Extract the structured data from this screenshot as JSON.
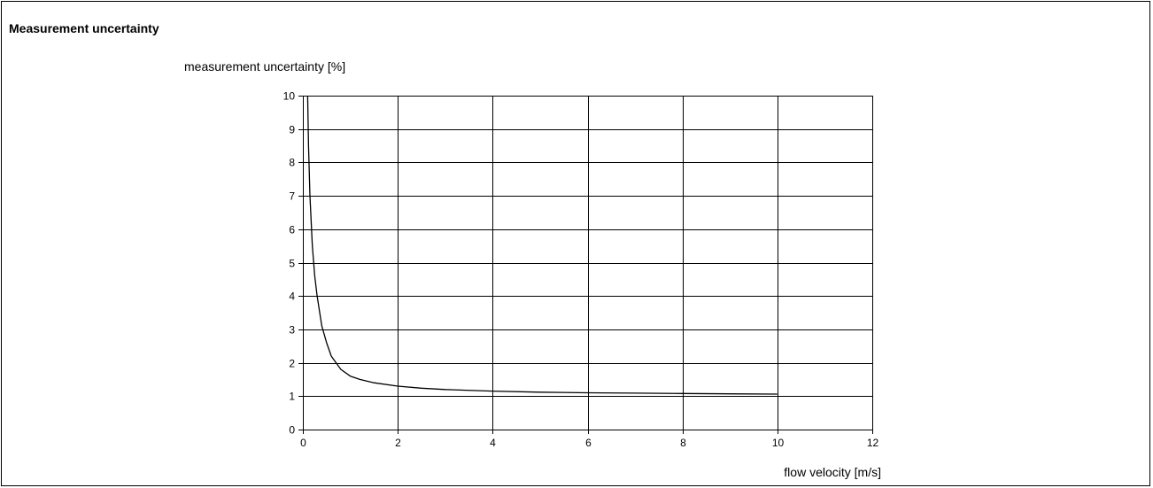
{
  "panel": {
    "title": "Measurement uncertainty"
  },
  "chart_data": {
    "type": "line",
    "title": "",
    "xlabel": "flow velocity [m/s]",
    "ylabel": "measurement uncertainty [%]",
    "xlim": [
      0,
      12
    ],
    "ylim": [
      0,
      10
    ],
    "xticks": [
      0,
      2,
      4,
      6,
      8,
      10,
      12
    ],
    "yticks": [
      0,
      1,
      2,
      3,
      4,
      5,
      6,
      7,
      8,
      9,
      10
    ],
    "grid": true,
    "legend": "none",
    "series": [
      {
        "color": "#000000",
        "x": [
          0.1,
          0.12,
          0.15,
          0.2,
          0.25,
          0.3,
          0.4,
          0.5,
          0.6,
          0.7,
          0.8,
          1.0,
          1.2,
          1.5,
          2.0,
          2.5,
          3.0,
          4.0,
          5.0,
          6.0,
          7.0,
          8.0,
          9.0,
          10.0
        ],
        "y": [
          10.0,
          8.5,
          7.0,
          5.5,
          4.6,
          4.0,
          3.1,
          2.6,
          2.2,
          2.0,
          1.8,
          1.6,
          1.5,
          1.4,
          1.3,
          1.24,
          1.2,
          1.15,
          1.12,
          1.1,
          1.09,
          1.08,
          1.07,
          1.06
        ]
      }
    ]
  }
}
